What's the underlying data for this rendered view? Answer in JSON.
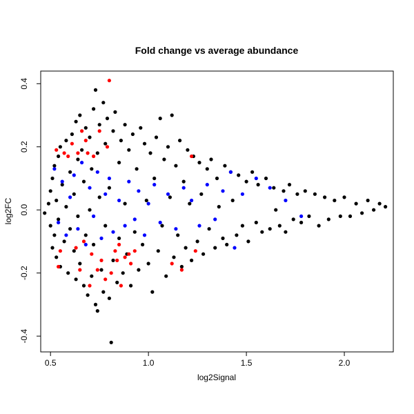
{
  "chart_data": {
    "type": "scatter",
    "title": "Fold change vs average abundance",
    "xlabel": "log2Signal",
    "ylabel": "log2FC",
    "xlim": [
      0.45,
      2.25
    ],
    "ylim": [
      -0.45,
      0.44
    ],
    "x_ticks": [
      {
        "value": 0.5,
        "label": "0.5"
      },
      {
        "value": 1.0,
        "label": "1.0"
      },
      {
        "value": 1.5,
        "label": "1.5"
      },
      {
        "value": 2.0,
        "label": "2.0"
      }
    ],
    "y_ticks": [
      {
        "value": -0.4,
        "label": "-0.4"
      },
      {
        "value": -0.2,
        "label": "-0.2"
      },
      {
        "value": 0.0,
        "label": "0.0"
      },
      {
        "value": 0.2,
        "label": "0.2"
      },
      {
        "value": 0.4,
        "label": "0.4"
      }
    ],
    "grid": false,
    "legend": "none",
    "colors": {
      "base": "#000000",
      "highlight_blue": "#0000ff",
      "highlight_red": "#ff0000"
    },
    "series": [
      {
        "color": "#000000",
        "points": [
          [
            0.47,
            -0.01
          ],
          [
            0.49,
            0.02
          ],
          [
            0.5,
            0.06
          ],
          [
            0.5,
            -0.05
          ],
          [
            0.51,
            0.1
          ],
          [
            0.51,
            -0.12
          ],
          [
            0.52,
            0.14
          ],
          [
            0.52,
            -0.08
          ],
          [
            0.53,
            0.03
          ],
          [
            0.53,
            -0.15
          ],
          [
            0.54,
            0.17
          ],
          [
            0.54,
            -0.03
          ],
          [
            0.55,
            0.2
          ],
          [
            0.55,
            -0.18
          ],
          [
            0.56,
            0.08
          ],
          [
            0.57,
            -0.1
          ],
          [
            0.58,
            0.22
          ],
          [
            0.58,
            0.01
          ],
          [
            0.59,
            -0.2
          ],
          [
            0.6,
            0.12
          ],
          [
            0.6,
            -0.06
          ],
          [
            0.61,
            0.24
          ],
          [
            0.62,
            -0.13
          ],
          [
            0.62,
            0.05
          ],
          [
            0.63,
            0.28
          ],
          [
            0.63,
            -0.22
          ],
          [
            0.64,
            0.16
          ],
          [
            0.64,
            -0.02
          ],
          [
            0.65,
            0.3
          ],
          [
            0.65,
            -0.17
          ],
          [
            0.66,
            0.19
          ],
          [
            0.67,
            -0.24
          ],
          [
            0.67,
            0.09
          ],
          [
            0.68,
            0.26
          ],
          [
            0.68,
            -0.08
          ],
          [
            0.69,
            -0.27
          ],
          [
            0.7,
            0.23
          ],
          [
            0.7,
            0.0
          ],
          [
            0.71,
            -0.21
          ],
          [
            0.71,
            0.13
          ],
          [
            0.72,
            0.32
          ],
          [
            0.72,
            -0.11
          ],
          [
            0.73,
            0.38
          ],
          [
            0.73,
            -0.3
          ],
          [
            0.74,
            0.18
          ],
          [
            0.74,
            -0.32
          ],
          [
            0.75,
            0.27
          ],
          [
            0.75,
            0.04
          ],
          [
            0.76,
            -0.19
          ],
          [
            0.77,
            0.34
          ],
          [
            0.77,
            -0.26
          ],
          [
            0.78,
            0.21
          ],
          [
            0.78,
            -0.05
          ],
          [
            0.79,
            0.29
          ],
          [
            0.8,
            -0.28
          ],
          [
            0.8,
            0.07
          ],
          [
            0.81,
            -0.42
          ],
          [
            0.82,
            0.25
          ],
          [
            0.82,
            -0.16
          ],
          [
            0.83,
            0.31
          ],
          [
            0.84,
            -0.23
          ],
          [
            0.85,
            0.15
          ],
          [
            0.85,
            -0.09
          ],
          [
            0.86,
            0.22
          ],
          [
            0.87,
            -0.2
          ],
          [
            0.88,
            0.27
          ],
          [
            0.88,
            0.02
          ],
          [
            0.89,
            -0.14
          ],
          [
            0.9,
            0.19
          ],
          [
            0.91,
            -0.24
          ],
          [
            0.92,
            0.24
          ],
          [
            0.93,
            -0.07
          ],
          [
            0.94,
            0.13
          ],
          [
            0.95,
            -0.19
          ],
          [
            0.96,
            0.26
          ],
          [
            0.97,
            -0.11
          ],
          [
            0.98,
            0.21
          ],
          [
            0.99,
            0.03
          ],
          [
            1.0,
            -0.17
          ],
          [
            1.01,
            0.18
          ],
          [
            1.02,
            -0.26
          ],
          [
            1.03,
            0.1
          ],
          [
            1.04,
            0.23
          ],
          [
            1.05,
            -0.13
          ],
          [
            1.06,
            0.29
          ],
          [
            1.07,
            -0.05
          ],
          [
            1.08,
            0.16
          ],
          [
            1.09,
            -0.21
          ],
          [
            1.1,
            0.2
          ],
          [
            1.11,
            0.04
          ],
          [
            1.12,
            0.3
          ],
          [
            1.13,
            -0.15
          ],
          [
            1.14,
            0.14
          ],
          [
            1.15,
            -0.08
          ],
          [
            1.16,
            0.22
          ],
          [
            1.17,
            -0.18
          ],
          [
            1.18,
            0.09
          ],
          [
            1.19,
            -0.12
          ],
          [
            1.2,
            0.19
          ],
          [
            1.21,
            0.02
          ],
          [
            1.22,
            -0.16
          ],
          [
            1.23,
            0.17
          ],
          [
            1.25,
            -0.1
          ],
          [
            1.26,
            0.15
          ],
          [
            1.27,
            0.05
          ],
          [
            1.28,
            -0.14
          ],
          [
            1.3,
            0.13
          ],
          [
            1.31,
            -0.06
          ],
          [
            1.32,
            0.16
          ],
          [
            1.34,
            -0.12
          ],
          [
            1.35,
            0.1
          ],
          [
            1.36,
            0.01
          ],
          [
            1.38,
            -0.09
          ],
          [
            1.39,
            0.14
          ],
          [
            1.4,
            -0.11
          ],
          [
            1.42,
            0.12
          ],
          [
            1.43,
            0.03
          ],
          [
            1.45,
            -0.08
          ],
          [
            1.46,
            0.11
          ],
          [
            1.48,
            -0.05
          ],
          [
            1.5,
            0.09
          ],
          [
            1.51,
            -0.1
          ],
          [
            1.53,
            0.12
          ],
          [
            1.55,
            -0.04
          ],
          [
            1.56,
            0.08
          ],
          [
            1.58,
            -0.07
          ],
          [
            1.6,
            0.1
          ],
          [
            1.62,
            -0.06
          ],
          [
            1.64,
            0.07
          ],
          [
            1.65,
            0.0
          ],
          [
            1.67,
            -0.05
          ],
          [
            1.69,
            0.06
          ],
          [
            1.7,
            -0.07
          ],
          [
            1.72,
            0.08
          ],
          [
            1.74,
            -0.03
          ],
          [
            1.76,
            0.05
          ],
          [
            1.78,
            -0.04
          ],
          [
            1.8,
            0.06
          ],
          [
            1.82,
            -0.02
          ],
          [
            1.85,
            0.05
          ],
          [
            1.87,
            -0.05
          ],
          [
            1.9,
            0.04
          ],
          [
            1.92,
            -0.03
          ],
          [
            1.95,
            0.03
          ],
          [
            1.98,
            -0.02
          ],
          [
            2.0,
            0.04
          ],
          [
            2.03,
            -0.02
          ],
          [
            2.06,
            0.02
          ],
          [
            2.09,
            -0.01
          ],
          [
            2.12,
            0.03
          ],
          [
            2.15,
            0.0
          ],
          [
            2.18,
            0.02
          ],
          [
            2.21,
            0.01
          ]
        ]
      },
      {
        "color": "#0000ff",
        "points": [
          [
            0.52,
            0.13
          ],
          [
            0.54,
            -0.04
          ],
          [
            0.56,
            0.09
          ],
          [
            0.58,
            -0.08
          ],
          [
            0.6,
            0.04
          ],
          [
            0.62,
            0.11
          ],
          [
            0.64,
            -0.06
          ],
          [
            0.66,
            0.15
          ],
          [
            0.68,
            -0.11
          ],
          [
            0.7,
            0.07
          ],
          [
            0.72,
            -0.02
          ],
          [
            0.74,
            0.12
          ],
          [
            0.76,
            -0.09
          ],
          [
            0.78,
            0.05
          ],
          [
            0.8,
            0.1
          ],
          [
            0.82,
            -0.07
          ],
          [
            0.85,
            0.03
          ],
          [
            0.88,
            -0.05
          ],
          [
            0.9,
            0.09
          ],
          [
            0.93,
            -0.03
          ],
          [
            0.95,
            0.06
          ],
          [
            0.98,
            -0.08
          ],
          [
            1.0,
            0.02
          ],
          [
            1.03,
            0.08
          ],
          [
            1.06,
            -0.04
          ],
          [
            1.1,
            0.05
          ],
          [
            1.14,
            -0.06
          ],
          [
            1.18,
            0.07
          ],
          [
            1.22,
            0.03
          ],
          [
            1.26,
            -0.05
          ],
          [
            1.3,
            0.08
          ],
          [
            1.34,
            -0.03
          ],
          [
            1.38,
            0.06
          ],
          [
            1.42,
            0.12
          ],
          [
            1.44,
            -0.12
          ],
          [
            1.48,
            0.05
          ],
          [
            1.55,
            0.1
          ],
          [
            1.62,
            0.07
          ],
          [
            1.7,
            0.03
          ],
          [
            1.78,
            -0.02
          ]
        ]
      },
      {
        "color": "#ff0000",
        "points": [
          [
            0.53,
            0.19
          ],
          [
            0.54,
            -0.18
          ],
          [
            0.55,
            -0.13
          ],
          [
            0.57,
            0.18
          ],
          [
            0.59,
            0.17
          ],
          [
            0.61,
            0.21
          ],
          [
            0.63,
            -0.12
          ],
          [
            0.64,
            0.18
          ],
          [
            0.65,
            -0.19
          ],
          [
            0.66,
            0.25
          ],
          [
            0.67,
            -0.1
          ],
          [
            0.68,
            0.22
          ],
          [
            0.69,
            0.18
          ],
          [
            0.7,
            -0.24
          ],
          [
            0.71,
            -0.14
          ],
          [
            0.72,
            0.17
          ],
          [
            0.74,
            -0.19
          ],
          [
            0.75,
            0.25
          ],
          [
            0.76,
            -0.16
          ],
          [
            0.78,
            -0.22
          ],
          [
            0.79,
            0.2
          ],
          [
            0.8,
            0.41
          ],
          [
            0.81,
            -0.2
          ],
          [
            0.83,
            -0.13
          ],
          [
            0.84,
            -0.16
          ],
          [
            0.85,
            -0.11
          ],
          [
            0.86,
            -0.24
          ],
          [
            0.88,
            -0.15
          ],
          [
            0.9,
            -0.14
          ],
          [
            0.91,
            -0.17
          ],
          [
            0.93,
            -0.13
          ],
          [
            1.12,
            -0.17
          ],
          [
            1.17,
            -0.19
          ],
          [
            1.22,
            0.17
          ],
          [
            1.24,
            -0.13
          ]
        ]
      }
    ]
  }
}
